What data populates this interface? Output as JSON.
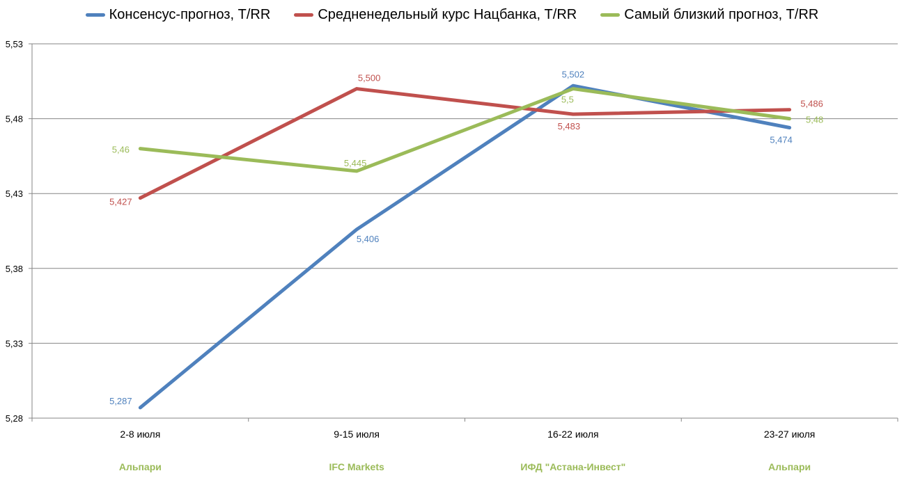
{
  "chart_data": {
    "type": "line",
    "title": "",
    "xlabel": "",
    "ylabel": "",
    "ylim": [
      5.28,
      5.53
    ],
    "yticks": [
      "5,28",
      "5,33",
      "5,38",
      "5,43",
      "5,48",
      "5,53"
    ],
    "ytick_values": [
      5.28,
      5.33,
      5.38,
      5.43,
      5.48,
      5.53
    ],
    "categories": [
      "2-8 июля",
      "9-15 июля",
      "16-22 июля",
      "23-27 июля"
    ],
    "sublabels": [
      "Альпари",
      "IFC Markets",
      "ИФД \"Астана-Инвест\"",
      "Альпари"
    ],
    "grid": "horizontal",
    "legend_position": "top",
    "series": [
      {
        "name": "Консенсус-прогноз, T/RR",
        "color": "#4f81bd",
        "values": [
          5.287,
          5.406,
          5.502,
          5.474
        ],
        "labels": [
          "5,287",
          "5,406",
          "5,502",
          "5,474"
        ]
      },
      {
        "name": "Средненедельный  курс Нацбанка, T/RR",
        "color": "#c0504d",
        "values": [
          5.427,
          5.5,
          5.483,
          5.486
        ],
        "labels": [
          "5,427",
          "5,500",
          "5,483",
          "5,486"
        ]
      },
      {
        "name": "Самый близкий прогноз, T/RR",
        "color": "#9bbb59",
        "values": [
          5.46,
          5.445,
          5.5,
          5.48
        ],
        "labels": [
          "5,46",
          "5,445",
          "5,5",
          "5,48"
        ]
      }
    ]
  }
}
